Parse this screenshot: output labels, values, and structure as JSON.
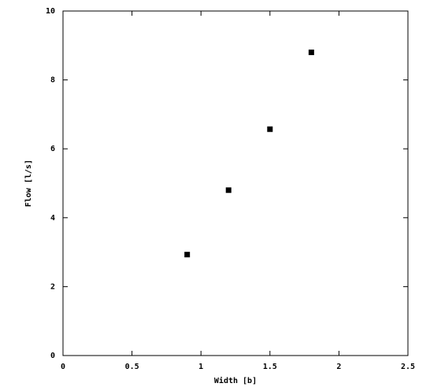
{
  "chart_data": {
    "type": "scatter",
    "x_label": "Width [b]",
    "y_label": "Flow [l/s]",
    "series": [
      {
        "color": "#000000",
        "x": [
          0.9,
          1.2,
          1.5,
          1.8
        ],
        "values": [
          2.93,
          4.8,
          6.57,
          8.8
        ]
      }
    ],
    "xlim": [
      0,
      2.5
    ],
    "xticks": [
      0,
      0.5,
      1,
      1.5,
      2,
      2.5
    ],
    "ylim": [
      0,
      10
    ],
    "yticks": [
      0,
      2,
      4,
      6,
      8,
      10
    ],
    "grid": false
  }
}
